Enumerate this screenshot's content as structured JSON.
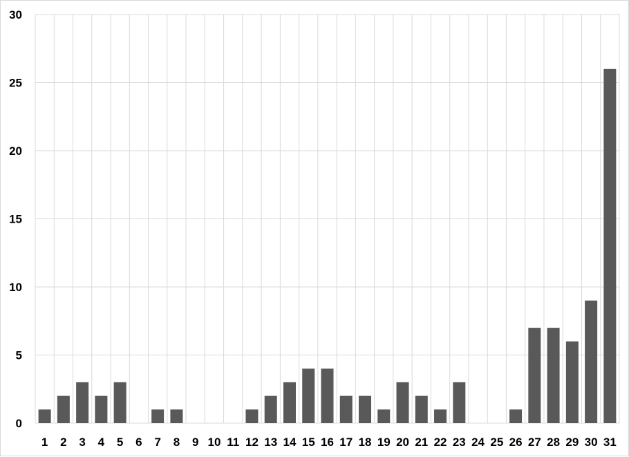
{
  "chart_data": {
    "type": "bar",
    "title": "",
    "xlabel": "",
    "ylabel": "",
    "categories": [
      "1",
      "2",
      "3",
      "4",
      "5",
      "6",
      "7",
      "8",
      "9",
      "10",
      "11",
      "12",
      "13",
      "14",
      "15",
      "16",
      "17",
      "18",
      "19",
      "20",
      "21",
      "22",
      "23",
      "24",
      "25",
      "26",
      "27",
      "28",
      "29",
      "30",
      "31"
    ],
    "values": [
      1,
      2,
      3,
      2,
      3,
      0,
      1,
      1,
      0,
      0,
      0,
      1,
      2,
      3,
      4,
      4,
      2,
      2,
      1,
      3,
      2,
      1,
      3,
      0,
      0,
      1,
      7,
      7,
      6,
      9,
      26
    ],
    "ylim": [
      0,
      30
    ],
    "yticks": [
      0,
      5,
      10,
      15,
      20,
      25,
      30
    ],
    "grid": true,
    "legend": "none",
    "colors": {
      "bar": "#595959",
      "grid": "#d9d9d9"
    }
  }
}
